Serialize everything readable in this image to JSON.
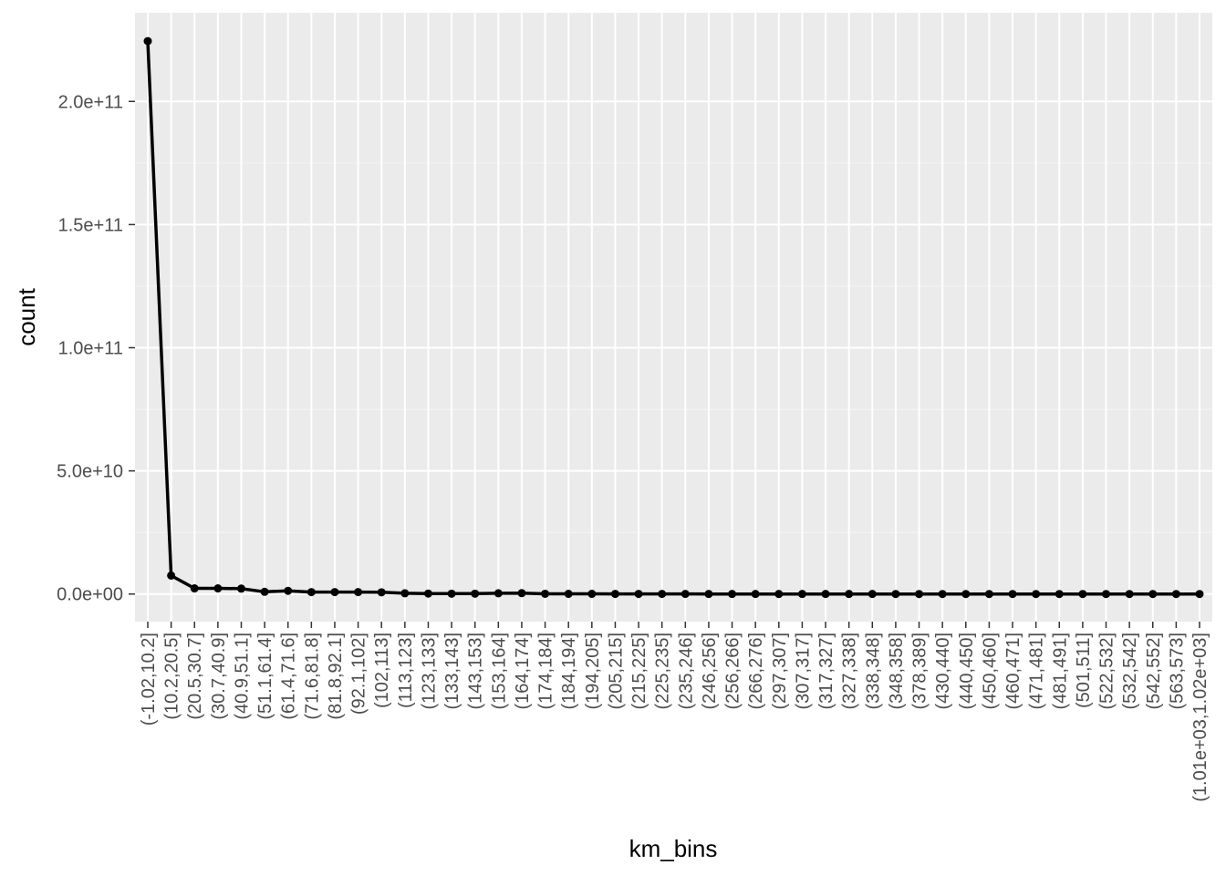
{
  "chart_data": {
    "type": "line",
    "xlabel": "km_bins",
    "ylabel": "count",
    "ylim": [
      -11200000000,
      236000000000
    ],
    "y_ticks": [
      0,
      50000000000,
      100000000000,
      150000000000,
      200000000000
    ],
    "y_tick_labels": [
      "0.0e+00",
      "5.0e+10",
      "1.0e+11",
      "1.5e+11",
      "2.0e+11"
    ],
    "grid": true,
    "legend": "none",
    "colors": {
      "panel": "#ebebeb",
      "grid_major": "#ffffff",
      "grid_minor": "#f5f5f5",
      "line": "#000000",
      "tick": "#4d4d4d"
    },
    "categories": [
      "(-1.02,10.2]",
      "(10.2,20.5]",
      "(20.5,30.7]",
      "(30.7,40.9]",
      "(40.9,51.1]",
      "(51.1,61.4]",
      "(61.4,71.6]",
      "(71.6,81.8]",
      "(81.8,92.1]",
      "(92.1,102]",
      "(102,113]",
      "(113,123]",
      "(123,133]",
      "(133,143]",
      "(143,153]",
      "(153,164]",
      "(164,174]",
      "(174,184]",
      "(184,194]",
      "(194,205]",
      "(205,215]",
      "(215,225]",
      "(225,235]",
      "(235,246]",
      "(246,256]",
      "(256,266]",
      "(266,276]",
      "(297,307]",
      "(307,317]",
      "(317,327]",
      "(327,338]",
      "(338,348]",
      "(348,358]",
      "(378,389]",
      "(430,440]",
      "(440,450]",
      "(450,460]",
      "(460,471]",
      "(471,481]",
      "(481,491]",
      "(501,511]",
      "(522,532]",
      "(532,542]",
      "(542,552]",
      "(563,573]",
      "(1.01e+03,1.02e+03]"
    ],
    "values": [
      224500000000,
      7500000000,
      2300000000,
      2300000000,
      2200000000,
      900000000,
      1300000000,
      800000000,
      800000000,
      800000000,
      700000000,
      300000000,
      200000000,
      150000000,
      150000000,
      300000000,
      350000000,
      100000000,
      80000000,
      80000000,
      50000000,
      50000000,
      40000000,
      40000000,
      30000000,
      30000000,
      30000000,
      20000000,
      20000000,
      20000000,
      20000000,
      20000000,
      15000000,
      15000000,
      10000000,
      10000000,
      10000000,
      10000000,
      10000000,
      10000000,
      8000000,
      8000000,
      6000000,
      5000000,
      5000000,
      3000000
    ]
  }
}
